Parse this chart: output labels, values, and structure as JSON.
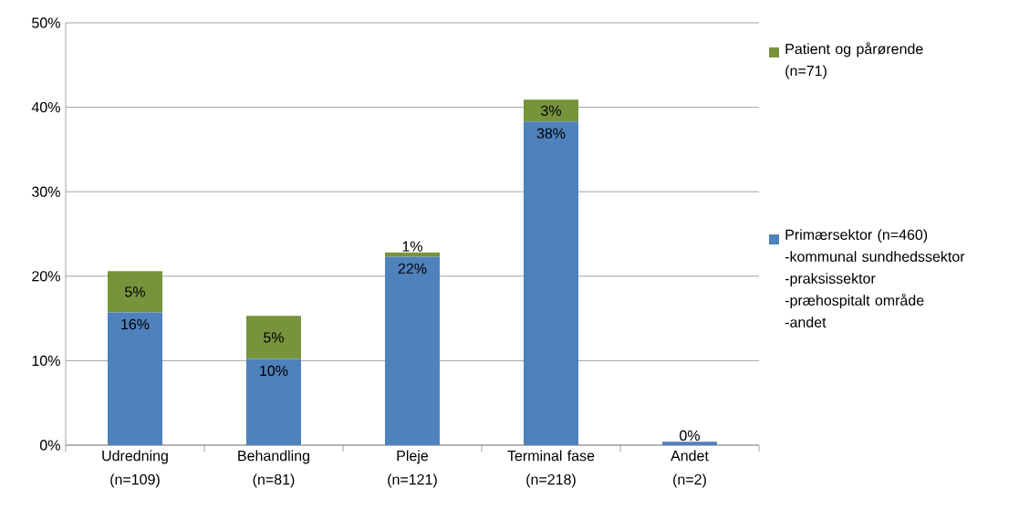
{
  "chart_data": {
    "type": "bar",
    "stacked": true,
    "categories": [
      "Udredning\n(n=109)",
      "Behandling\n(n=81)",
      "Pleje\n(n=121)",
      "Terminal fase\n(n=218)",
      "Andet\n(n=2)"
    ],
    "series": [
      {
        "name": "Primærsektor (n=460)\n-kommunal sundhedssektor\n-praksissektor\n-præhospitalt område\n-andet",
        "color": "#4f81bd",
        "values": [
          15.7,
          10.2,
          22.3,
          38.3,
          0.4
        ],
        "value_labels": [
          "16%",
          "10%",
          "22%",
          "38%",
          "0%"
        ]
      },
      {
        "name": "Patient og pårørende\n(n=71)",
        "color": "#77933c",
        "values": [
          4.9,
          5.1,
          0.5,
          2.6,
          0
        ],
        "value_labels": [
          "5%",
          "5%",
          "1%",
          "3%",
          null
        ]
      }
    ],
    "ylim": [
      0,
      50
    ],
    "yticks": [
      {
        "value": 0,
        "label": "0%"
      },
      {
        "value": 10,
        "label": "10%"
      },
      {
        "value": 20,
        "label": "20%"
      },
      {
        "value": 30,
        "label": "30%"
      },
      {
        "value": 40,
        "label": "40%"
      },
      {
        "value": 50,
        "label": "50%"
      }
    ],
    "grid": "y",
    "legend": "right"
  }
}
